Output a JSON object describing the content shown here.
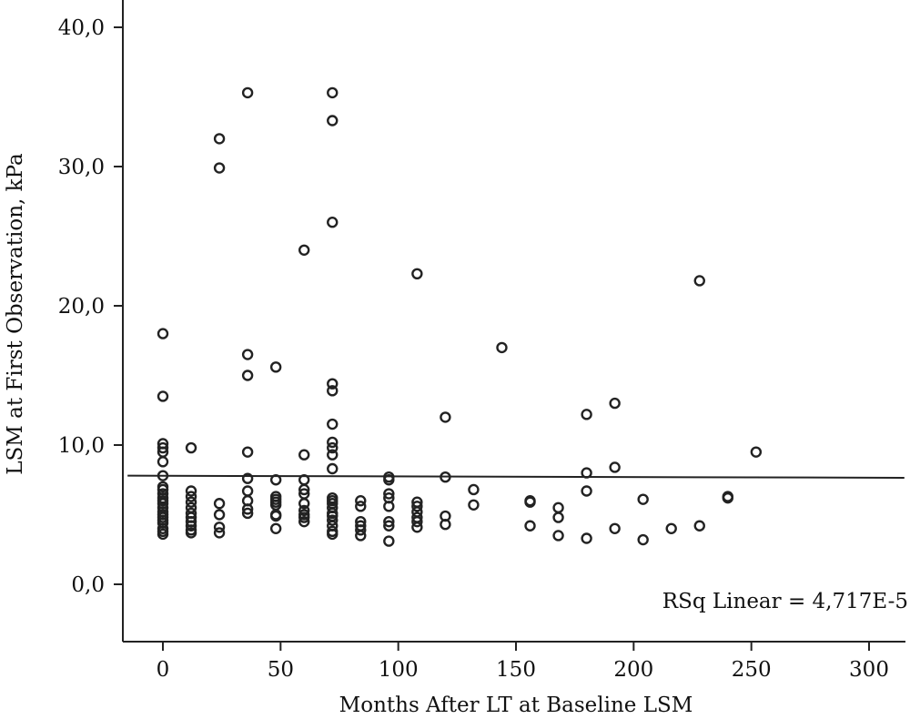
{
  "chart_data": {
    "type": "scatter",
    "title": "",
    "xlabel": "Months After LT at Baseline LSM",
    "ylabel": "LSM at First Observation, kPa",
    "xlim": [
      -15,
      315
    ],
    "ylim": [
      -2.5,
      42
    ],
    "x_ticks": [
      0,
      50,
      100,
      150,
      200,
      250,
      300
    ],
    "x_tick_labels": [
      "0",
      "50",
      "100",
      "150",
      "200",
      "250",
      "300"
    ],
    "y_ticks": [
      0,
      10,
      20,
      30,
      40
    ],
    "y_tick_labels": [
      "0,0",
      "10,0",
      "20,0",
      "30,0",
      "40,0"
    ],
    "grid": false,
    "fit_line": {
      "type": "linear",
      "x": [
        -15,
        315
      ],
      "y": [
        7.8,
        7.65
      ]
    },
    "annotation": "RSq Linear = 4,717E-5",
    "series": [
      {
        "points": [
          [
            0,
            18.0
          ],
          [
            0,
            13.5
          ],
          [
            0,
            10.1
          ],
          [
            0,
            9.8
          ],
          [
            0,
            9.5
          ],
          [
            0,
            8.8
          ],
          [
            0,
            7.8
          ],
          [
            0,
            7.0
          ],
          [
            0,
            6.8
          ],
          [
            0,
            6.5
          ],
          [
            0,
            6.2
          ],
          [
            0,
            6.0
          ],
          [
            0,
            5.8
          ],
          [
            0,
            5.5
          ],
          [
            0,
            5.2
          ],
          [
            0,
            5.0
          ],
          [
            0,
            4.8
          ],
          [
            0,
            4.6
          ],
          [
            0,
            4.4
          ],
          [
            0,
            4.0
          ],
          [
            0,
            3.8
          ],
          [
            0,
            3.6
          ],
          [
            12,
            9.8
          ],
          [
            12,
            6.7
          ],
          [
            12,
            6.3
          ],
          [
            12,
            5.9
          ],
          [
            12,
            5.5
          ],
          [
            12,
            5.1
          ],
          [
            12,
            4.8
          ],
          [
            12,
            4.5
          ],
          [
            12,
            4.2
          ],
          [
            12,
            3.9
          ],
          [
            12,
            3.7
          ],
          [
            24,
            32.0
          ],
          [
            24,
            29.9
          ],
          [
            24,
            5.8
          ],
          [
            24,
            5.0
          ],
          [
            24,
            4.1
          ],
          [
            24,
            3.7
          ],
          [
            36,
            35.3
          ],
          [
            36,
            16.5
          ],
          [
            36,
            15.0
          ],
          [
            36,
            9.5
          ],
          [
            36,
            7.6
          ],
          [
            36,
            6.7
          ],
          [
            36,
            6.0
          ],
          [
            36,
            5.4
          ],
          [
            36,
            5.1
          ],
          [
            48,
            15.6
          ],
          [
            48,
            7.5
          ],
          [
            48,
            6.3
          ],
          [
            48,
            6.1
          ],
          [
            48,
            5.9
          ],
          [
            48,
            5.7
          ],
          [
            48,
            5.0
          ],
          [
            48,
            4.9
          ],
          [
            48,
            4.0
          ],
          [
            60,
            24.0
          ],
          [
            60,
            9.3
          ],
          [
            60,
            7.5
          ],
          [
            60,
            6.8
          ],
          [
            60,
            6.5
          ],
          [
            60,
            5.8
          ],
          [
            60,
            5.3
          ],
          [
            60,
            5.0
          ],
          [
            60,
            4.8
          ],
          [
            60,
            4.5
          ],
          [
            72,
            35.3
          ],
          [
            72,
            33.3
          ],
          [
            72,
            26.0
          ],
          [
            72,
            14.4
          ],
          [
            72,
            13.9
          ],
          [
            72,
            11.5
          ],
          [
            72,
            10.2
          ],
          [
            72,
            9.8
          ],
          [
            72,
            9.3
          ],
          [
            72,
            8.3
          ],
          [
            72,
            6.2
          ],
          [
            72,
            6.0
          ],
          [
            72,
            5.8
          ],
          [
            72,
            5.5
          ],
          [
            72,
            5.1
          ],
          [
            72,
            4.9
          ],
          [
            72,
            4.6
          ],
          [
            72,
            4.2
          ],
          [
            72,
            3.8
          ],
          [
            72,
            3.6
          ],
          [
            84,
            6.0
          ],
          [
            84,
            5.6
          ],
          [
            84,
            4.5
          ],
          [
            84,
            4.2
          ],
          [
            84,
            3.9
          ],
          [
            84,
            3.5
          ],
          [
            96,
            7.7
          ],
          [
            96,
            7.5
          ],
          [
            96,
            6.5
          ],
          [
            96,
            6.2
          ],
          [
            96,
            5.6
          ],
          [
            96,
            4.5
          ],
          [
            96,
            4.2
          ],
          [
            96,
            3.1
          ],
          [
            108,
            22.3
          ],
          [
            108,
            5.9
          ],
          [
            108,
            5.6
          ],
          [
            108,
            5.2
          ],
          [
            108,
            4.8
          ],
          [
            108,
            4.5
          ],
          [
            108,
            4.1
          ],
          [
            120,
            12.0
          ],
          [
            120,
            7.7
          ],
          [
            120,
            4.9
          ],
          [
            120,
            4.3
          ],
          [
            132,
            6.8
          ],
          [
            132,
            5.7
          ],
          [
            144,
            17.0
          ],
          [
            156,
            6.0
          ],
          [
            156,
            5.9
          ],
          [
            156,
            4.2
          ],
          [
            168,
            5.5
          ],
          [
            168,
            4.8
          ],
          [
            168,
            3.5
          ],
          [
            180,
            12.2
          ],
          [
            180,
            8.0
          ],
          [
            180,
            6.7
          ],
          [
            180,
            3.3
          ],
          [
            192,
            13.0
          ],
          [
            192,
            8.4
          ],
          [
            192,
            4.0
          ],
          [
            204,
            6.1
          ],
          [
            204,
            3.2
          ],
          [
            216,
            4.0
          ],
          [
            228,
            21.8
          ],
          [
            228,
            4.2
          ],
          [
            240,
            6.3
          ],
          [
            240,
            6.2
          ],
          [
            252,
            9.5
          ]
        ]
      }
    ]
  }
}
